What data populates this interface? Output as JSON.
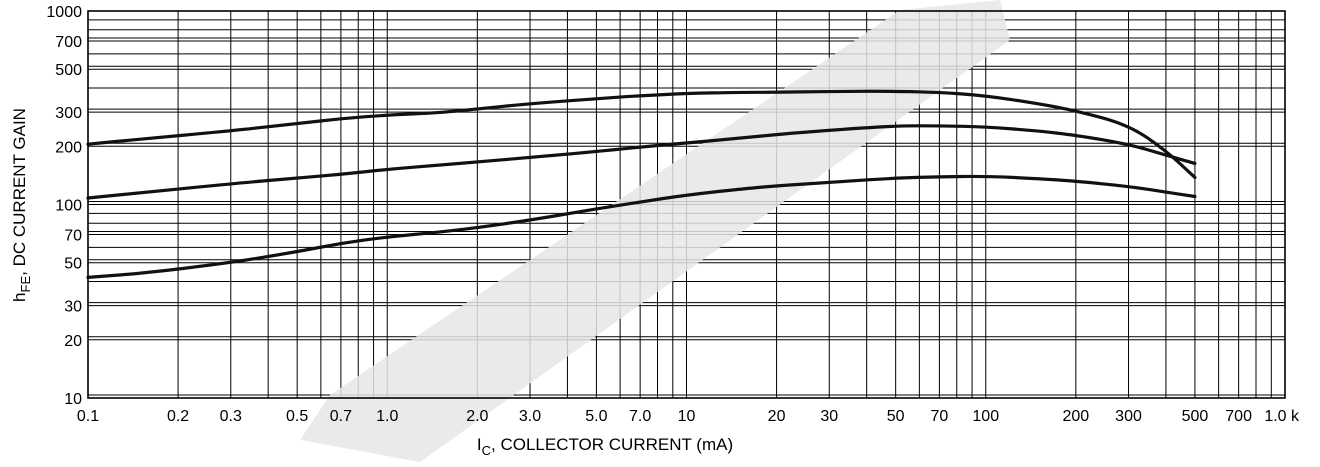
{
  "chart_data": {
    "type": "line",
    "title": "",
    "xlabel": "I_C, COLLECTOR CURRENT (mA)",
    "xlabel_main": "I",
    "xlabel_sub": "C",
    "xlabel_rest": ", COLLECTOR CURRENT (mA)",
    "ylabel": "h_FE, DC CURRENT GAIN",
    "ylabel_main": "h",
    "ylabel_sub": "FE",
    "ylabel_rest": ", DC CURRENT GAIN",
    "x_scale": "log",
    "y_scale": "log",
    "xlim": [
      0.1,
      1000
    ],
    "ylim": [
      10,
      1000
    ],
    "grid": true,
    "legend": "none",
    "xticks": [
      {
        "value": 0.1,
        "label": "0.1"
      },
      {
        "value": 0.2,
        "label": "0.2"
      },
      {
        "value": 0.3,
        "label": "0.3"
      },
      {
        "value": 0.5,
        "label": "0.5"
      },
      {
        "value": 0.7,
        "label": "0.7"
      },
      {
        "value": 1,
        "label": "1.0"
      },
      {
        "value": 2,
        "label": "2.0"
      },
      {
        "value": 3,
        "label": "3.0"
      },
      {
        "value": 5,
        "label": "5.0"
      },
      {
        "value": 7,
        "label": "7.0"
      },
      {
        "value": 10,
        "label": "10"
      },
      {
        "value": 20,
        "label": "20"
      },
      {
        "value": 30,
        "label": "30"
      },
      {
        "value": 50,
        "label": "50"
      },
      {
        "value": 70,
        "label": "70"
      },
      {
        "value": 100,
        "label": "100"
      },
      {
        "value": 200,
        "label": "200"
      },
      {
        "value": 300,
        "label": "300"
      },
      {
        "value": 500,
        "label": "500"
      },
      {
        "value": 700,
        "label": "700"
      },
      {
        "value": 1000,
        "label": "1.0 k"
      }
    ],
    "yticks": [
      {
        "value": 10,
        "label": "10"
      },
      {
        "value": 20,
        "label": "20"
      },
      {
        "value": 30,
        "label": "30"
      },
      {
        "value": 50,
        "label": "50"
      },
      {
        "value": 70,
        "label": "70"
      },
      {
        "value": 100,
        "label": "100"
      },
      {
        "value": 200,
        "label": "200"
      },
      {
        "value": 300,
        "label": "300"
      },
      {
        "value": 500,
        "label": "500"
      },
      {
        "value": 700,
        "label": "700"
      },
      {
        "value": 1000,
        "label": "1000"
      }
    ],
    "series": [
      {
        "x": [
          0.1,
          0.15,
          0.3,
          0.5,
          0.7,
          1.0,
          1.5,
          2.0,
          3.0,
          5.0,
          7.0,
          10,
          15,
          20,
          30,
          50,
          70,
          100,
          150,
          200,
          300,
          400,
          500
        ],
        "y": [
          205,
          218,
          240,
          262,
          278,
          290,
          298,
          312,
          332,
          352,
          365,
          375,
          380,
          380,
          384,
          385,
          380,
          365,
          332,
          305,
          258,
          190,
          138
        ]
      },
      {
        "x": [
          0.1,
          0.15,
          0.3,
          0.5,
          0.7,
          1.0,
          1.5,
          2.0,
          3.0,
          5.0,
          7.0,
          10,
          15,
          20,
          30,
          50,
          70,
          100,
          150,
          200,
          300,
          400,
          500
        ],
        "y": [
          108,
          115,
          128,
          137,
          143,
          152,
          160,
          166,
          175,
          188,
          198,
          208,
          220,
          230,
          242,
          255,
          255,
          252,
          240,
          228,
          205,
          180,
          163
        ]
      },
      {
        "x": [
          0.1,
          0.15,
          0.3,
          0.5,
          0.7,
          1.0,
          1.5,
          2.0,
          3.0,
          5.0,
          7.0,
          10,
          15,
          20,
          30,
          50,
          70,
          100,
          150,
          200,
          300,
          400,
          500
        ],
        "y": [
          42,
          44,
          50,
          57,
          63,
          68,
          72,
          76,
          83,
          95,
          103,
          112,
          120,
          125,
          130,
          137,
          139,
          140,
          136,
          132,
          124,
          116,
          110
        ]
      }
    ]
  }
}
